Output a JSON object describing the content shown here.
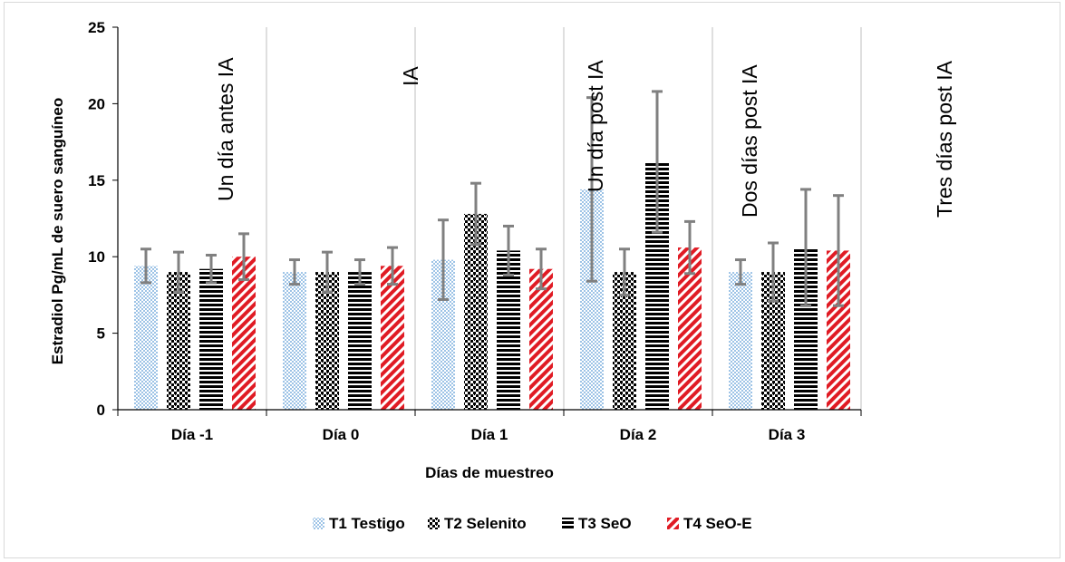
{
  "chart_data": {
    "type": "bar",
    "title": "",
    "xlabel": "Días de muestreo",
    "ylabel": "Estradiol Pg/mL de suero sanguíneo",
    "ylim": [
      0,
      25
    ],
    "yticks": [
      0,
      5,
      10,
      15,
      20,
      25
    ],
    "categories": [
      "Día -1",
      "Día 0",
      "Día 1",
      "Día 2",
      "Día 3"
    ],
    "annotations": [
      "Un día antes IA",
      "IA",
      "Un día post IA",
      "Dos días post IA",
      "Tres días post IA"
    ],
    "legend_position": "bottom",
    "grid": false,
    "series": [
      {
        "name": "T1 Testigo",
        "values": [
          9.4,
          9.0,
          9.8,
          14.4,
          9.0
        ],
        "errors": [
          1.1,
          0.8,
          2.6,
          6.0,
          0.8
        ],
        "color": "#9dc3e6",
        "pattern": "dots"
      },
      {
        "name": "T2 Selenito",
        "values": [
          9.0,
          9.0,
          12.8,
          9.0,
          9.0
        ],
        "errors": [
          1.3,
          1.3,
          2.0,
          1.5,
          1.9
        ],
        "color": "#000000",
        "pattern": "checker"
      },
      {
        "name": "T3 SeO",
        "values": [
          9.2,
          9.0,
          10.4,
          16.2,
          10.6
        ],
        "errors": [
          0.9,
          0.8,
          1.6,
          4.6,
          3.8
        ],
        "color": "#000000",
        "pattern": "horizontal"
      },
      {
        "name": "T4 SeO-E",
        "values": [
          10.0,
          9.4,
          9.2,
          10.6,
          10.4
        ],
        "errors": [
          1.5,
          1.2,
          1.3,
          1.7,
          3.6
        ],
        "color": "#e01b24",
        "pattern": "diagonal"
      }
    ]
  }
}
